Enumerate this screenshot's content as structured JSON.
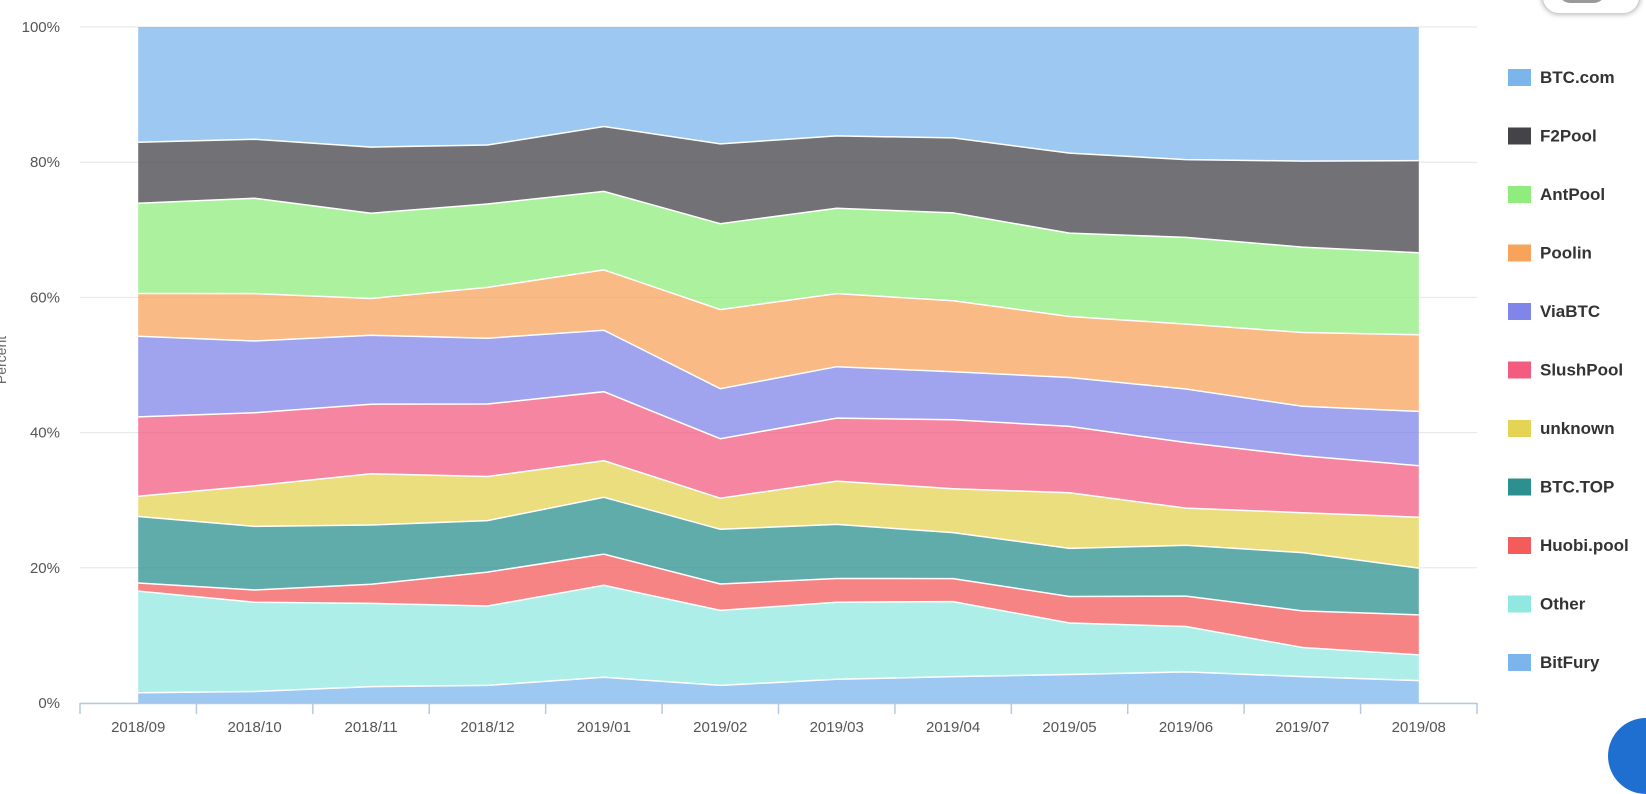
{
  "chart_data": {
    "type": "area",
    "stacking": "percent",
    "ylabel": "Percent",
    "y_ticks": [
      "0%",
      "20%",
      "40%",
      "60%",
      "80%",
      "100%"
    ],
    "ylim": [
      0,
      100
    ],
    "categories": [
      "2018/09",
      "2018/10",
      "2018/11",
      "2018/12",
      "2019/01",
      "2019/02",
      "2019/03",
      "2019/04",
      "2019/05",
      "2019/06",
      "2019/07",
      "2019/08"
    ],
    "legend_position": "right",
    "grid": true,
    "series": [
      {
        "name": "BTC.com",
        "color": "#7cb5ec",
        "values": [
          17.0,
          16.6,
          17.6,
          17.4,
          14.7,
          17.3,
          16.1,
          16.4,
          18.6,
          19.6,
          19.8,
          19.7
        ]
      },
      {
        "name": "F2Pool",
        "color": "#434348",
        "values": [
          9.0,
          8.7,
          9.7,
          8.7,
          9.6,
          11.8,
          10.7,
          11.1,
          11.8,
          11.5,
          12.7,
          13.6
        ]
      },
      {
        "name": "AntPool",
        "color": "#90ed7d",
        "values": [
          13.3,
          14.1,
          12.5,
          12.3,
          11.6,
          12.7,
          12.6,
          13.0,
          12.3,
          12.8,
          12.6,
          12.1
        ]
      },
      {
        "name": "Poolin",
        "color": "#f7a35c",
        "values": [
          6.3,
          7.0,
          5.4,
          7.5,
          8.9,
          11.7,
          10.8,
          10.5,
          9.0,
          9.6,
          10.9,
          11.3
        ]
      },
      {
        "name": "ViaBTC",
        "color": "#8085e9",
        "values": [
          11.9,
          10.6,
          10.1,
          9.7,
          9.1,
          7.4,
          7.6,
          7.1,
          7.2,
          7.9,
          7.3,
          8.0
        ]
      },
      {
        "name": "SlushPool",
        "color": "#f15c80",
        "values": [
          11.7,
          10.8,
          10.2,
          10.7,
          10.2,
          8.8,
          9.3,
          10.2,
          9.8,
          9.7,
          8.4,
          7.6
        ]
      },
      {
        "name": "unknown",
        "color": "#e4d354",
        "values": [
          3.0,
          6.0,
          7.5,
          6.5,
          5.4,
          4.6,
          6.4,
          6.5,
          8.2,
          5.5,
          5.9,
          7.5
        ]
      },
      {
        "name": "BTC.TOP",
        "color": "#2b908f",
        "values": [
          9.8,
          9.4,
          8.7,
          7.6,
          8.4,
          8.1,
          8.0,
          6.8,
          7.1,
          7.5,
          8.6,
          6.9
        ]
      },
      {
        "name": "Huobi.pool",
        "color": "#f45b5b",
        "values": [
          1.2,
          1.8,
          2.8,
          5.0,
          4.6,
          3.9,
          3.5,
          3.4,
          3.9,
          4.5,
          5.4,
          5.9
        ]
      },
      {
        "name": "Other",
        "color": "#91e8e1",
        "values": [
          15.0,
          13.2,
          12.2,
          11.7,
          13.6,
          11.1,
          11.4,
          11.1,
          7.6,
          6.7,
          4.3,
          3.8
        ]
      },
      {
        "name": "BitFury",
        "color": "#7cb5ec",
        "values": [
          1.5,
          1.7,
          2.4,
          2.6,
          3.8,
          2.6,
          3.5,
          3.9,
          4.2,
          4.6,
          3.9,
          3.3
        ]
      }
    ]
  }
}
